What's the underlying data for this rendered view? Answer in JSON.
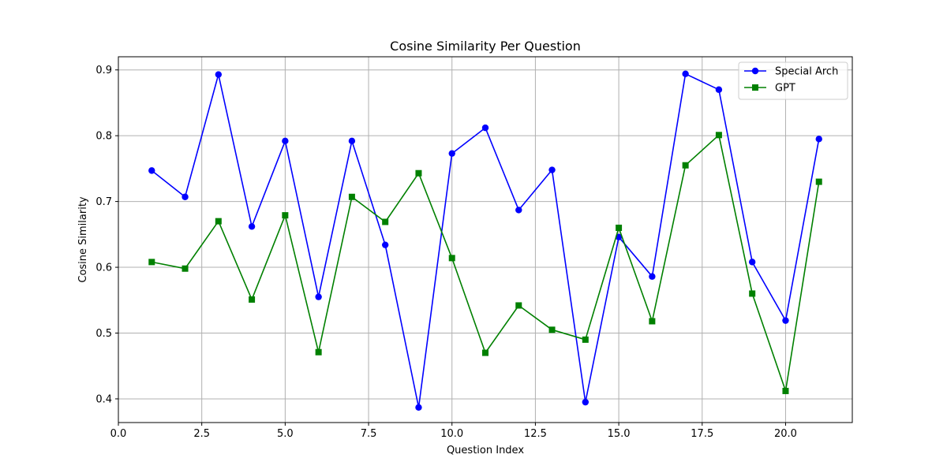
{
  "chart_data": {
    "type": "line",
    "title": "Cosine Similarity Per Question",
    "xlabel": "Question Index",
    "ylabel": "Cosine Similarity",
    "xlim": [
      0,
      22
    ],
    "ylim": [
      0.364,
      0.92
    ],
    "xticks": [
      "0.0",
      "2.5",
      "5.0",
      "7.5",
      "10.0",
      "12.5",
      "15.0",
      "17.5",
      "20.0"
    ],
    "xtick_values": [
      0,
      2.5,
      5,
      7.5,
      10,
      12.5,
      15,
      17.5,
      20
    ],
    "yticks": [
      "0.4",
      "0.5",
      "0.6",
      "0.7",
      "0.8",
      "0.9"
    ],
    "ytick_values": [
      0.4,
      0.5,
      0.6,
      0.7,
      0.8,
      0.9
    ],
    "grid": true,
    "legend_position": "top-right",
    "x": [
      1,
      2,
      3,
      4,
      5,
      6,
      7,
      8,
      9,
      10,
      11,
      12,
      13,
      14,
      15,
      16,
      17,
      18,
      19,
      20,
      21
    ],
    "series": [
      {
        "name": "Special Arch",
        "color": "#0000ff",
        "marker": "circle",
        "values": [
          0.747,
          0.707,
          0.893,
          0.662,
          0.792,
          0.555,
          0.792,
          0.634,
          0.387,
          0.773,
          0.812,
          0.687,
          0.748,
          0.395,
          0.646,
          0.586,
          0.894,
          0.87,
          0.608,
          0.519,
          0.795
        ]
      },
      {
        "name": "GPT",
        "color": "#008000",
        "marker": "square",
        "values": [
          0.608,
          0.598,
          0.67,
          0.551,
          0.679,
          0.471,
          0.707,
          0.669,
          0.743,
          0.614,
          0.47,
          0.542,
          0.505,
          0.49,
          0.66,
          0.518,
          0.755,
          0.801,
          0.56,
          0.412,
          0.73
        ]
      }
    ]
  }
}
